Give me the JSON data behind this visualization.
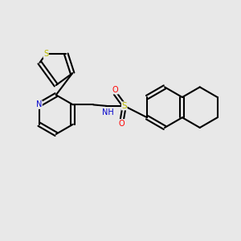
{
  "background_color": "#e8e8e8",
  "bond_color": "#000000",
  "figsize": [
    3.0,
    3.0
  ],
  "dpi": 100,
  "N_color": "#0000cc",
  "S_thiophene_color": "#bbbb00",
  "S_sulfonyl_color": "#bbbb00",
  "O_color": "#ff0000",
  "xlim": [
    0,
    10
  ],
  "ylim": [
    0,
    10
  ]
}
